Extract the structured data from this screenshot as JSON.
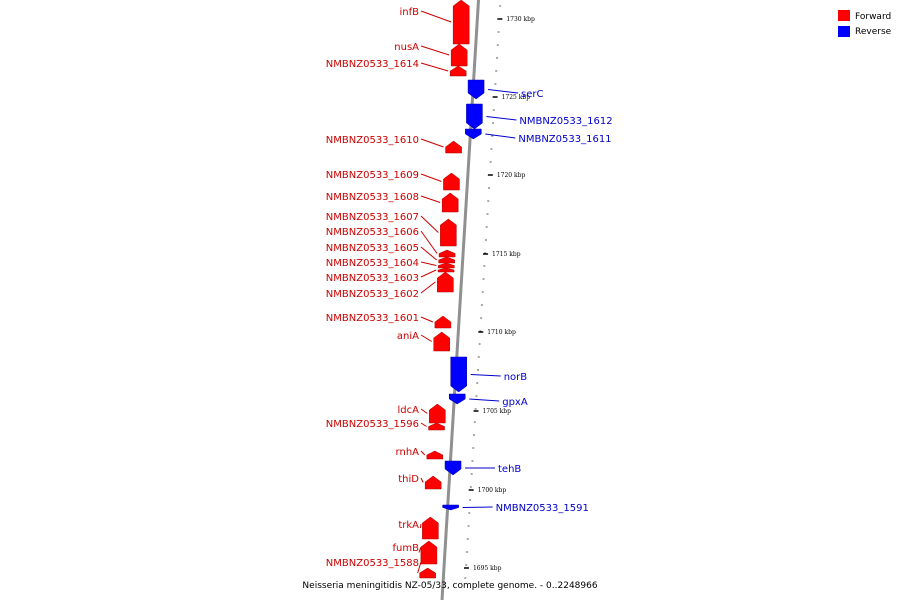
{
  "caption": "Neisseria meningitidis NZ-05/33, complete genome. - 0..2248966",
  "legend": [
    {
      "label": "Forward",
      "color": "#ff0000"
    },
    {
      "label": "Reverse",
      "color": "#0000ff"
    }
  ],
  "colors": {
    "forward": "#ff0000",
    "reverse": "#0000ff",
    "forward_label": "#cc0000",
    "reverse_label": "#0000cc",
    "axis": "#888888"
  },
  "scale_ticks": [
    {
      "label": "1730 kbp"
    },
    {
      "label": "1725 kbp"
    },
    {
      "label": "1720 kbp"
    },
    {
      "label": "1715 kbp"
    },
    {
      "label": "1710 kbp"
    },
    {
      "label": "1705 kbp"
    },
    {
      "label": "1700 kbp"
    },
    {
      "label": "1695 kbp"
    }
  ],
  "forward_genes": [
    {
      "name": "infB"
    },
    {
      "name": "nusA"
    },
    {
      "name": "NMBNZ0533_1614"
    },
    {
      "name": "NMBNZ0533_1610"
    },
    {
      "name": "NMBNZ0533_1609"
    },
    {
      "name": "NMBNZ0533_1608"
    },
    {
      "name": "NMBNZ0533_1607"
    },
    {
      "name": "NMBNZ0533_1606"
    },
    {
      "name": "NMBNZ0533_1605"
    },
    {
      "name": "NMBNZ0533_1604"
    },
    {
      "name": "NMBNZ0533_1603"
    },
    {
      "name": "NMBNZ0533_1602"
    },
    {
      "name": "NMBNZ0533_1601"
    },
    {
      "name": "aniA"
    },
    {
      "name": "ldcA"
    },
    {
      "name": "NMBNZ0533_1596"
    },
    {
      "name": "rnhA"
    },
    {
      "name": "thiD"
    },
    {
      "name": "trkA"
    },
    {
      "name": "fumB"
    },
    {
      "name": "NMBNZ0533_1588"
    }
  ],
  "reverse_genes": [
    {
      "name": "serC"
    },
    {
      "name": "NMBNZ0533_1612"
    },
    {
      "name": "NMBNZ0533_1611"
    },
    {
      "name": "norB"
    },
    {
      "name": "gpxA"
    },
    {
      "name": "tehB"
    },
    {
      "name": "NMBNZ0533_1591"
    }
  ]
}
